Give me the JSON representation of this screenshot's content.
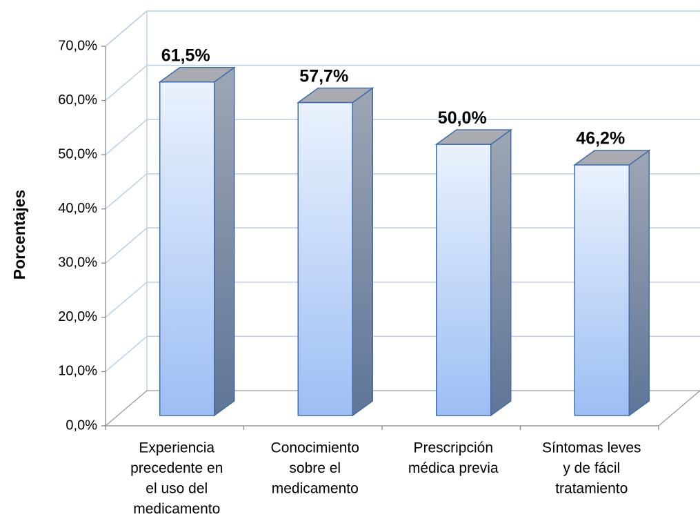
{
  "chart_data": {
    "type": "bar3d",
    "y_label": "Porcentajes",
    "categories": [
      [
        "Experiencia",
        "precedente en",
        "el uso del",
        "medicamento"
      ],
      [
        "Conocimiento",
        "sobre el",
        "medicamento"
      ],
      [
        "Prescripción",
        "médica previa"
      ],
      [
        "Síntomas leves",
        "y de fácil",
        "tratamiento"
      ]
    ],
    "values": [
      61.5,
      57.7,
      50.0,
      46.2
    ],
    "value_labels": [
      "61,5%",
      "57,7%",
      "50,0%",
      "46,2%"
    ],
    "ylim": [
      0,
      70
    ],
    "yticks": [
      {
        "value": 0,
        "label": "0,0%"
      },
      {
        "value": 10,
        "label": "10,0%"
      },
      {
        "value": 20,
        "label": "20,0%"
      },
      {
        "value": 30,
        "label": "30,0%"
      },
      {
        "value": 40,
        "label": "40,0%"
      },
      {
        "value": 50,
        "label": "50,0%"
      },
      {
        "value": 60,
        "label": "60,0%"
      },
      {
        "value": 70,
        "label": "70,0%"
      }
    ],
    "grid": true
  }
}
